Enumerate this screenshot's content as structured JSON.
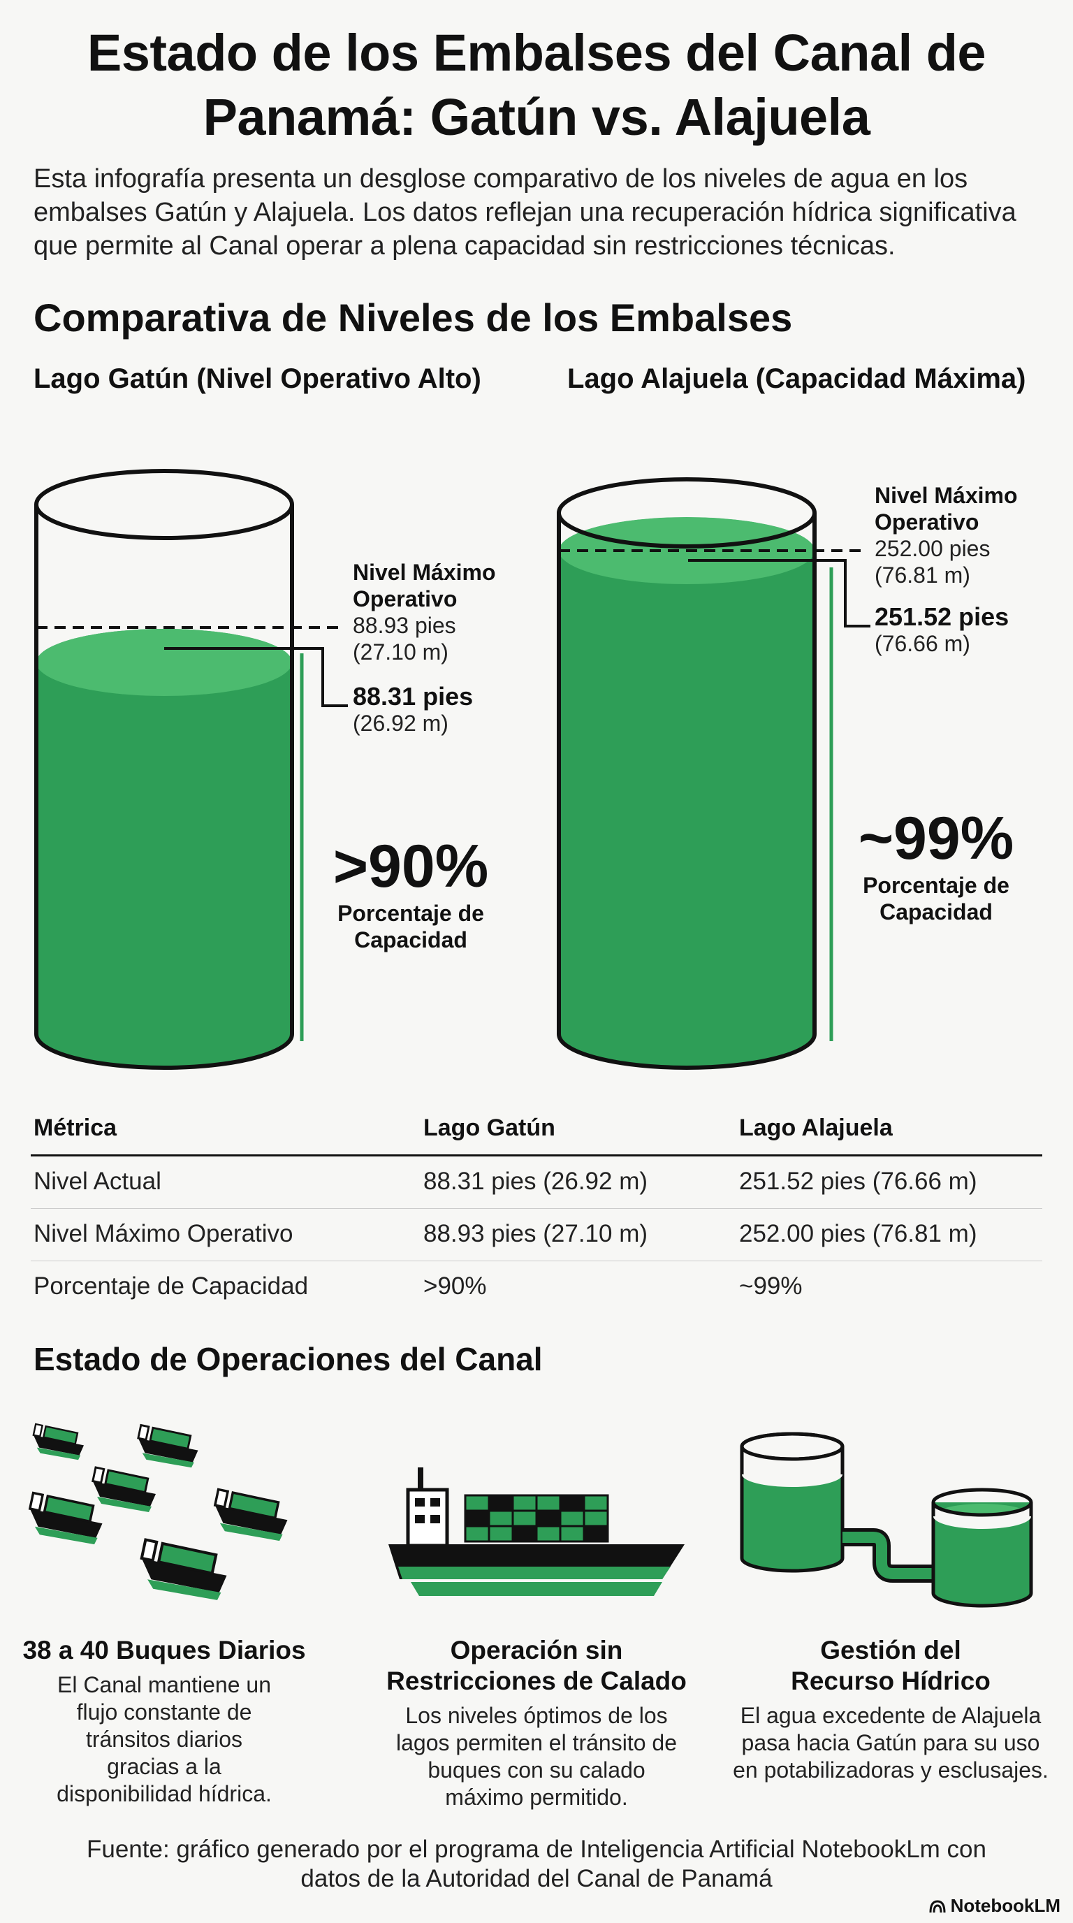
{
  "title": "Estado de los Embalses del Canal de Panamá: Gatún vs. Alajuela",
  "intro": "Esta infografía presenta un desglose comparativo de los niveles de agua en los embalses Gatún y Alajuela. Los datos reflejan una recuperación hídrica significativa que permite al Canal operar a plena capacidad sin restricciones técnicas.",
  "comparison": {
    "heading": "Comparativa de Niveles de los Embalses",
    "gatun": {
      "title": "Lago Gatún (Nivel Operativo Alto)",
      "max_label": "Nivel Máximo Operativo",
      "max_ft": "88.93 pies",
      "max_m": "(27.10 m)",
      "current_ft": "88.31 pies",
      "current_m": "(26.92 m)",
      "pct": ">90%",
      "pct_label": "Porcentaje de Capacidad",
      "fill_fraction": 0.9
    },
    "alajuela": {
      "title": "Lago Alajuela (Capacidad Máxima)",
      "max_label": "Nivel Máximo Operativo",
      "max_ft": "252.00 pies",
      "max_m": "(76.81 m)",
      "current_ft": "251.52 pies",
      "current_m": "(76.66 m)",
      "pct": "~99%",
      "pct_label": "Porcentaje de Capacidad",
      "fill_fraction": 0.99
    }
  },
  "table": {
    "headers": [
      "Métrica",
      "Lago Gatún",
      "Lago Alajuela"
    ],
    "rows": [
      [
        "Nivel Actual",
        "88.31 pies (26.92 m)",
        "251.52 pies (76.66 m)"
      ],
      [
        "Nivel Máximo Operativo",
        "88.93 pies (27.10 m)",
        "252.00 pies (76.81 m)"
      ],
      [
        "Porcentaje de Capacidad",
        ">90%",
        "~99%"
      ]
    ]
  },
  "operations": {
    "heading": "Estado de Operaciones del Canal",
    "items": [
      {
        "title": "38 a 40 Buques Diarios",
        "body": "El Canal mantiene un flujo constante de tránsitos diarios gracias a la disponibilidad hídrica.",
        "icon": "fleet-of-ships-icon"
      },
      {
        "title": "Operación sin Restricciones de Calado",
        "body": "Los niveles óptimos de los lagos permiten el tránsito de buques con su calado máximo permitido.",
        "icon": "container-ship-icon"
      },
      {
        "title": "Gestión del Recurso Hídrico",
        "body": "El agua excedente de Alajuela pasa hacia Gatún para su uso en potabilizadoras y esclusajes.",
        "icon": "connected-tanks-icon"
      }
    ]
  },
  "source": "Fuente: gráfico generado por el programa de Inteligencia Artificial NotebookLm con datos de la Autoridad del Canal de Panamá",
  "brand": "NotebookLM",
  "colors": {
    "water": "#2e9e57",
    "water_top": "#4cbb6f",
    "ink": "#111111",
    "background": "#f7f7f5"
  }
}
